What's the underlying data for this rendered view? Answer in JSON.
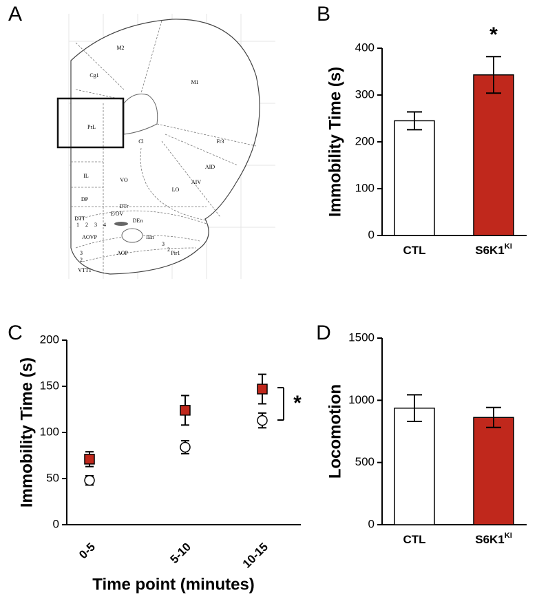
{
  "panel_labels": [
    "A",
    "B",
    "C",
    "D"
  ],
  "atlas": {
    "labels": [
      "M2",
      "Cg1",
      "M1",
      "PrL",
      "Cl",
      "Fr3",
      "AID",
      "AIV",
      "LO",
      "VO",
      "IL",
      "DP",
      "DTr",
      "E/OV",
      "DEn",
      "DTT",
      "1",
      "2",
      "3",
      "4",
      "AOVP",
      "AOP",
      "IEn",
      "Pir1",
      "3",
      "2",
      "3",
      "2",
      "VTT1"
    ]
  },
  "chart_data": [
    {
      "type": "bar",
      "ylabel": "Immobility Time (s)",
      "categories": [
        "CTL",
        "S6K1"
      ],
      "category_superscripts": [
        null,
        "KI"
      ],
      "values": [
        245,
        343
      ],
      "errors": [
        19,
        39
      ],
      "colors": [
        "#ffffff",
        "#c0281c"
      ],
      "ylim": [
        0,
        400
      ],
      "yticks": [
        0,
        100,
        200,
        300,
        400
      ],
      "annotation": "*"
    },
    {
      "type": "scatter",
      "ylabel": "Immobility Time (s)",
      "xlabel": "Time point (minutes)",
      "categories": [
        "0-5",
        "5-10",
        "10-15"
      ],
      "series": [
        {
          "marker": "square",
          "color": "#c0281c",
          "values": [
            71,
            124,
            147
          ],
          "errors": [
            8,
            16,
            16
          ]
        },
        {
          "marker": "circle",
          "color": "#ffffff",
          "values": [
            48,
            84,
            113
          ],
          "errors": [
            5,
            7,
            8
          ]
        }
      ],
      "ylim": [
        0,
        200
      ],
      "yticks": [
        0,
        50,
        100,
        150,
        200
      ],
      "annotation": "*"
    },
    {
      "type": "bar",
      "ylabel": "Locomotion",
      "categories": [
        "CTL",
        "S6K1"
      ],
      "category_superscripts": [
        null,
        "KI"
      ],
      "values": [
        937,
        862
      ],
      "errors": [
        107,
        80
      ],
      "colors": [
        "#ffffff",
        "#c0281c"
      ],
      "ylim": [
        0,
        1500
      ],
      "yticks": [
        0,
        500,
        1000,
        1500
      ]
    }
  ]
}
